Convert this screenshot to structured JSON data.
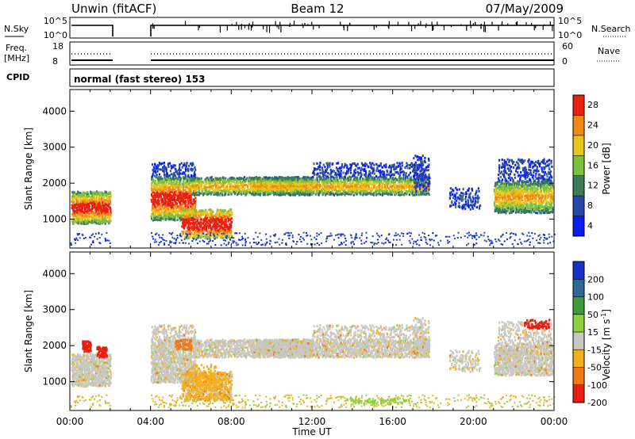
{
  "header": {
    "title": "Unwin (fitACF)",
    "beam": "Beam 12",
    "date": "07/May/2009"
  },
  "top_panels": {
    "nsky_label": "N.Sky",
    "nsky_ticks": [
      "10^5",
      "10^0"
    ],
    "nsearch_label": "N.Search",
    "nsearch_ticks": [
      "10^5",
      "10^0"
    ],
    "freq_label_1": "Freq.",
    "freq_label_2": "[MHz]",
    "freq_ticks": [
      "18",
      "8"
    ],
    "nave_label": "Nave",
    "nave_ticks": [
      "60",
      "0"
    ],
    "cpid_label": "CPID",
    "cpid_text": "normal (fast stereo) 153"
  },
  "chart_data": [
    {
      "type": "heatmap",
      "name": "power-panel",
      "ylabel": "Slant Range [km]",
      "yticks": [
        1000,
        2000,
        3000,
        4000
      ],
      "ylim": [
        200,
        4600
      ],
      "xticks": [
        "00:00",
        "04:00",
        "08:00",
        "12:00",
        "16:00",
        "20:00",
        "00:00"
      ],
      "xlim_hours": [
        0,
        24
      ],
      "colorbar_label": "Power [dB]",
      "colorbar_ticks": [
        "4",
        "8",
        "12",
        "16",
        "20",
        "24",
        "28"
      ],
      "colorbar_colors": [
        "#0a1ef0",
        "#2648a8",
        "#3b7a5a",
        "#7fbf3f",
        "#e8c51a",
        "#f08a10",
        "#e82010"
      ],
      "data_gap_hours": [
        2.0,
        4.0
      ]
    },
    {
      "type": "heatmap",
      "name": "velocity-panel",
      "ylabel": "Slant Range [km]",
      "yticks": [
        1000,
        2000,
        3000,
        4000
      ],
      "ylim": [
        200,
        4600
      ],
      "xticks": [
        "00:00",
        "04:00",
        "08:00",
        "12:00",
        "16:00",
        "20:00",
        "00:00"
      ],
      "xlabel": "Time UT",
      "colorbar_label": "Velocity [m s",
      "colorbar_label_sup": "-1",
      "colorbar_label_end": "]",
      "colorbar_ticks": [
        "200",
        "100",
        "50",
        "15",
        "-15",
        "-50",
        "-100",
        "-200"
      ],
      "colorbar_colors": [
        "#1a2fc8",
        "#2a6a98",
        "#3f9b3a",
        "#8fd040",
        "#c8c8c0",
        "#f2b020",
        "#f07818",
        "#e81e10"
      ],
      "data_gap_hours": [
        2.0,
        4.0
      ]
    }
  ]
}
